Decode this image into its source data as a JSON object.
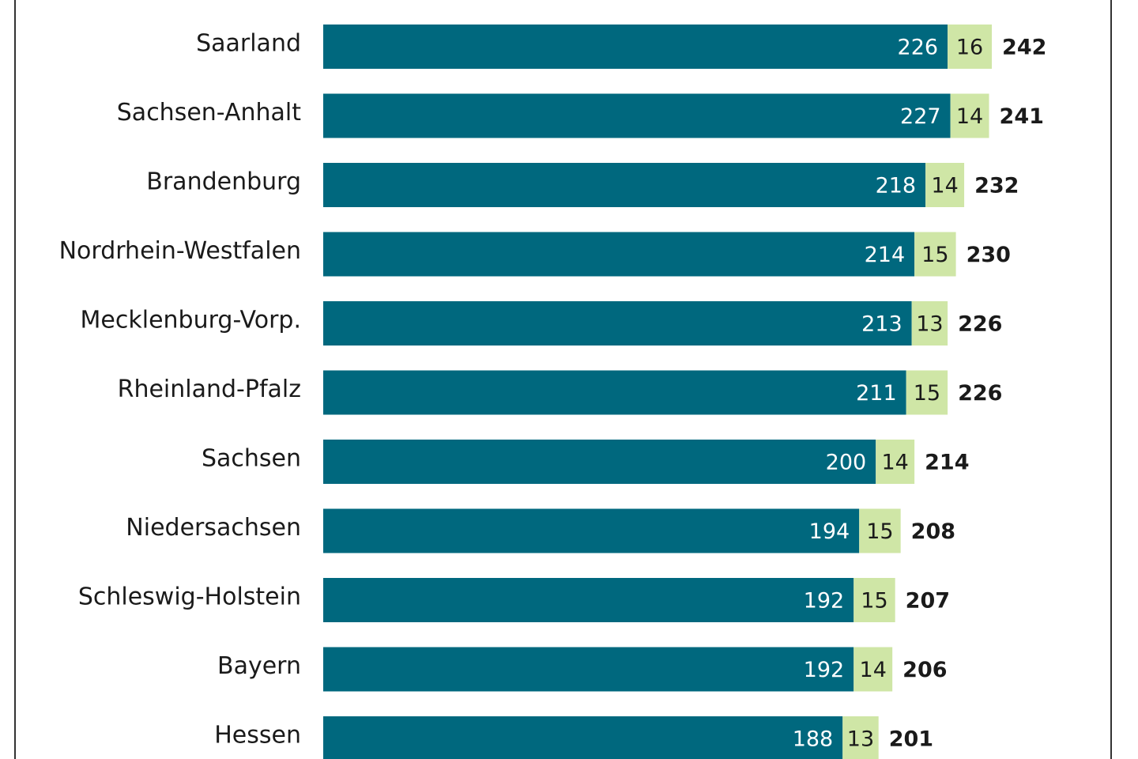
{
  "chart_data": {
    "type": "stacked-bar-horizontal",
    "categories": [
      "Saarland",
      "Sachsen-Anhalt",
      "Brandenburg",
      "Nordrhein-Westfalen",
      "Mecklenburg-Vorp.",
      "Rheinland-Pfalz",
      "Sachsen",
      "Niedersachsen",
      "Schleswig-Holstein",
      "Bayern",
      "Hessen"
    ],
    "series": [
      {
        "color": "#00687e",
        "values": [
          226,
          227,
          218,
          214,
          213,
          211,
          200,
          194,
          192,
          192,
          188
        ]
      },
      {
        "color": "#cfe6a6",
        "values": [
          16,
          14,
          14,
          15,
          13,
          15,
          14,
          15,
          15,
          14,
          13
        ]
      }
    ],
    "totals": [
      242,
      241,
      232,
      230,
      226,
      226,
      214,
      208,
      207,
      206,
      201
    ]
  }
}
